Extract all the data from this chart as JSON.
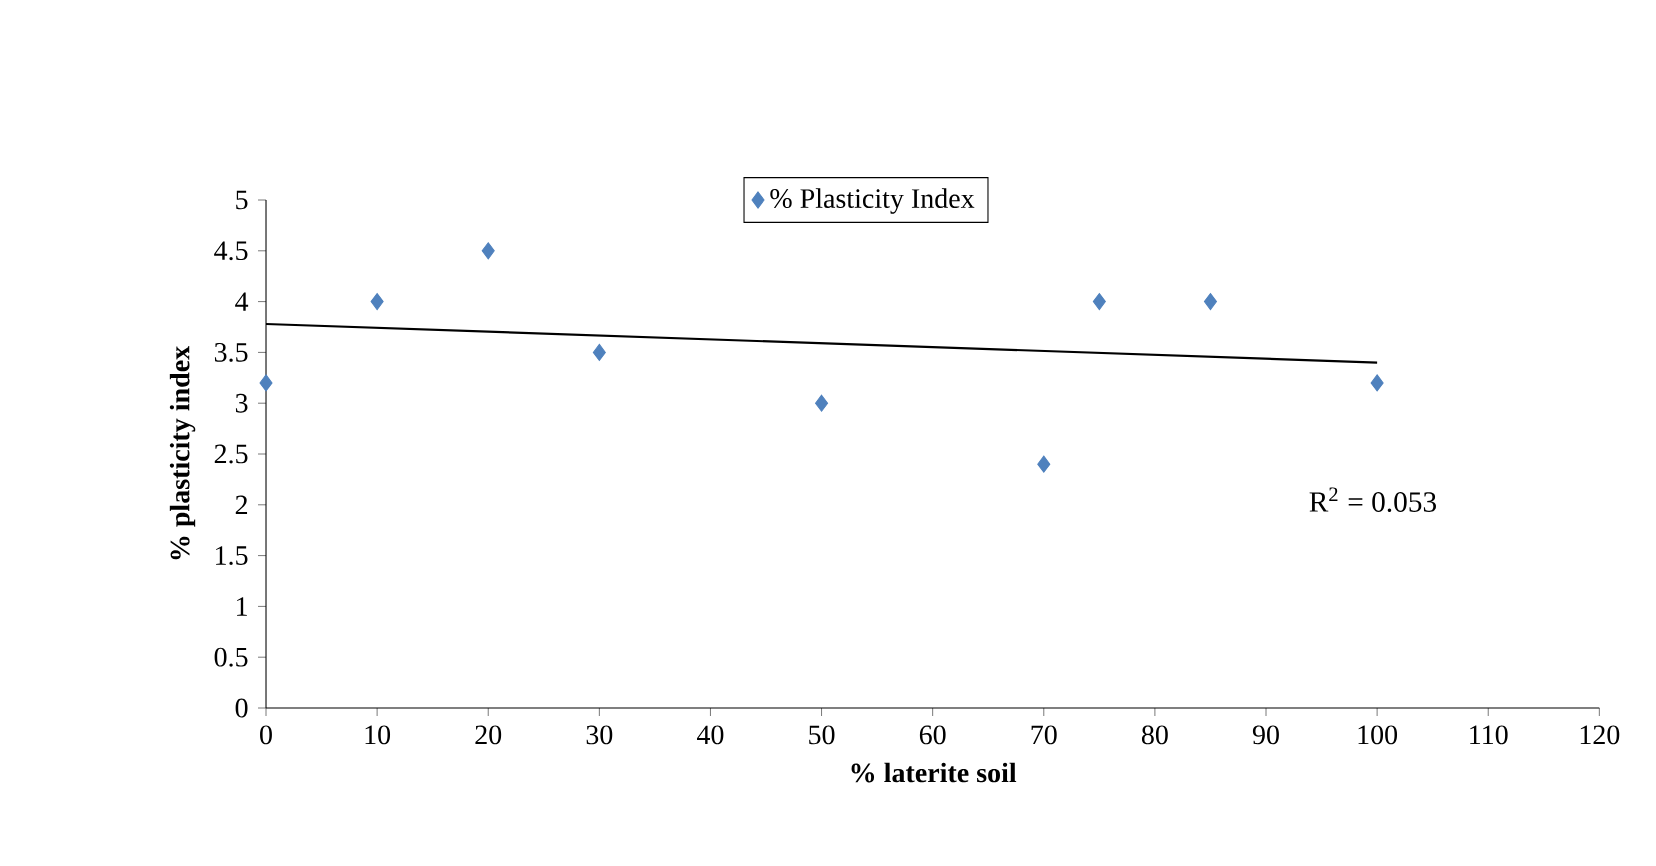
{
  "chart_data": {
    "type": "scatter",
    "xlabel": "% laterite soil",
    "ylabel": "% plasticity index",
    "xlim": [
      0,
      120
    ],
    "ylim": [
      0,
      5
    ],
    "xticks": [
      0,
      10,
      20,
      30,
      40,
      50,
      60,
      70,
      80,
      90,
      100,
      110,
      120
    ],
    "yticks": [
      0,
      0.5,
      1,
      1.5,
      2,
      2.5,
      3,
      3.5,
      4,
      4.5,
      5
    ],
    "series": [
      {
        "name": "% Plasticity Index",
        "color": "#4f81bd",
        "marker": "diamond",
        "x": [
          0,
          10,
          20,
          30,
          50,
          70,
          75,
          85,
          100
        ],
        "values": [
          3.2,
          4,
          4.5,
          3.5,
          3,
          2.4,
          4,
          4,
          3.2
        ]
      },
      {
        "type": "line",
        "color": "#000000",
        "x": [
          0,
          100
        ],
        "values": [
          3.78,
          3.4
        ]
      }
    ],
    "annotations": [
      "R$^{2}$ = 0.053"
    ],
    "legend": "top",
    "grid": false
  }
}
